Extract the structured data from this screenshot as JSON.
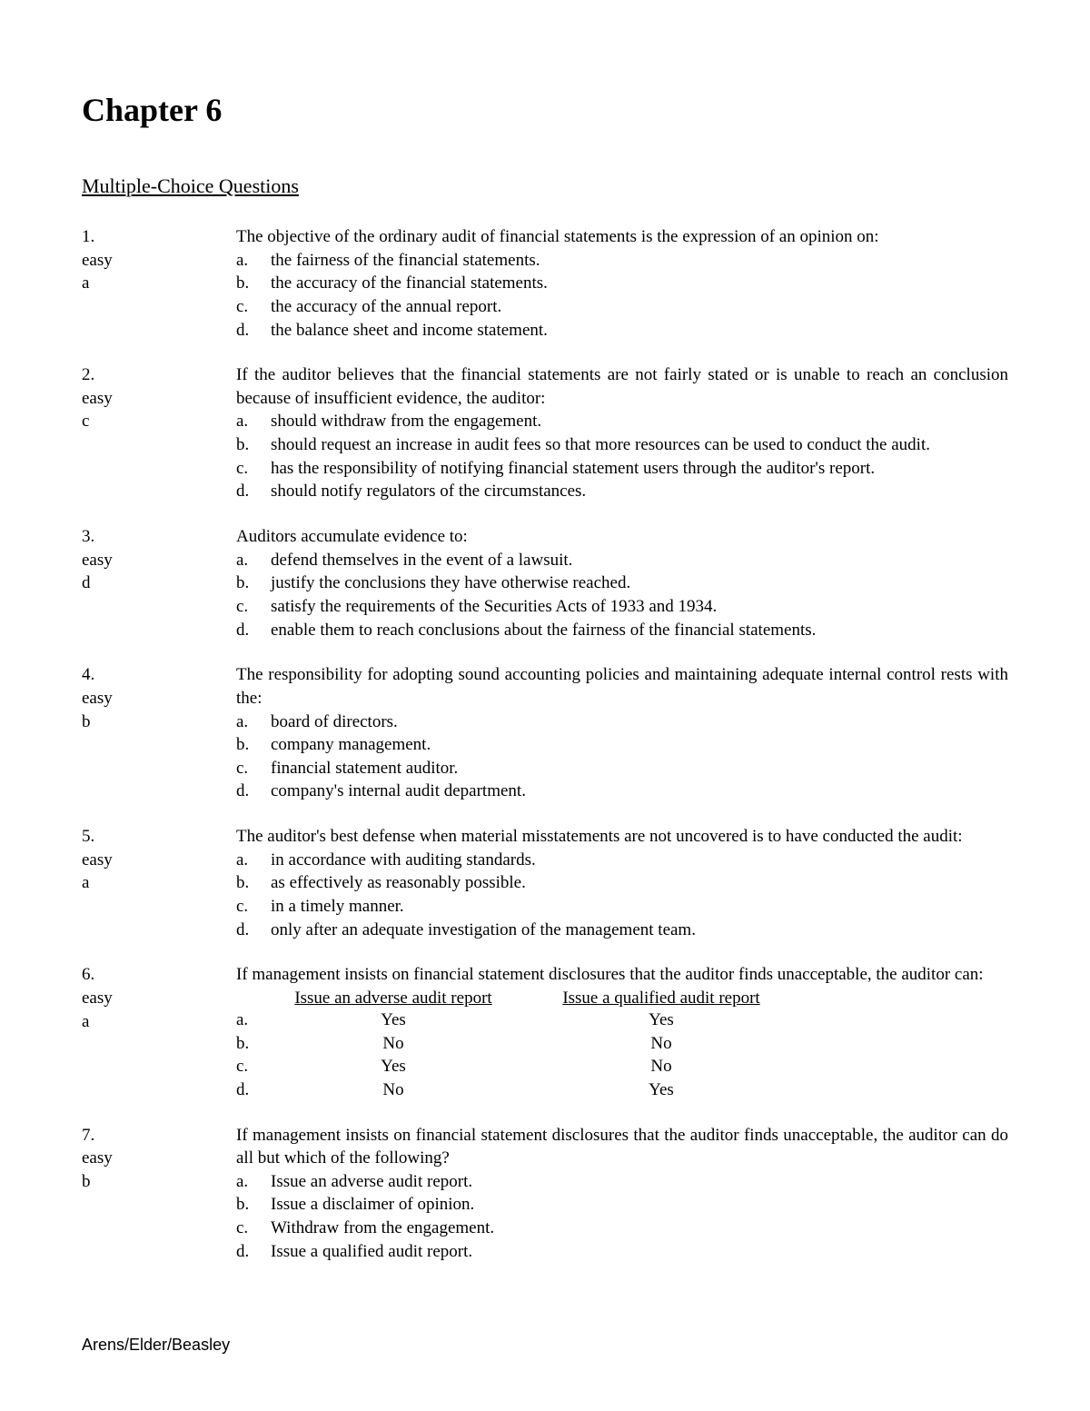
{
  "title": "Chapter 6",
  "section_heading": "Multiple-Choice Questions",
  "footer": "Arens/Elder/Beasley",
  "questions": [
    {
      "number": "1.",
      "difficulty": "easy",
      "answer": "a",
      "stem": "The objective of the ordinary audit of financial statements is the expression of an opinion on:",
      "justify": false,
      "options": [
        {
          "letter": "a.",
          "text": "the fairness of the financial statements."
        },
        {
          "letter": "b.",
          "text": "the accuracy of the financial statements."
        },
        {
          "letter": "c.",
          "text": "the accuracy of the annual report."
        },
        {
          "letter": "d.",
          "text": "the balance sheet and income statement."
        }
      ]
    },
    {
      "number": "2.",
      "difficulty": "easy",
      "answer": "c",
      "stem": "If the auditor believes that the financial statements are not fairly stated or is unable to reach an conclusion because of insufficient evidence, the auditor:",
      "justify": true,
      "options": [
        {
          "letter": "a.",
          "text": "should withdraw from the engagement."
        },
        {
          "letter": "b.",
          "text": "should request an increase in audit fees so that more resources can be used to conduct the audit.",
          "justify": true
        },
        {
          "letter": "c.",
          "text": "has the responsibility of notifying financial statement users through the auditor's report."
        },
        {
          "letter": "d.",
          "text": "should notify regulators of the circumstances."
        }
      ]
    },
    {
      "number": "3.",
      "difficulty": "easy",
      "answer": "d",
      "stem": "Auditors accumulate evidence to:",
      "justify": false,
      "options": [
        {
          "letter": "a.",
          "text": "defend themselves in the event of a lawsuit."
        },
        {
          "letter": "b.",
          "text": "justify the conclusions they have otherwise reached."
        },
        {
          "letter": "c.",
          "text": "satisfy the requirements of the Securities Acts of 1933 and 1934."
        },
        {
          "letter": "d.",
          "text": "enable them to reach conclusions about the fairness of the financial statements."
        }
      ]
    },
    {
      "number": "4.",
      "difficulty": "easy",
      "answer": "b",
      "stem": "The responsibility for adopting sound accounting policies and maintaining adequate internal control rests with the:",
      "justify": true,
      "options": [
        {
          "letter": "a.",
          "text": "board of directors."
        },
        {
          "letter": "b.",
          "text": "company management."
        },
        {
          "letter": "c.",
          "text": "financial statement auditor."
        },
        {
          "letter": "d.",
          "text": "company's internal audit department."
        }
      ]
    },
    {
      "number": "5.",
      "difficulty": "easy",
      "answer": "a",
      "stem": "The auditor's best defense when material misstatements are not uncovered is to have conducted the audit:",
      "justify": false,
      "options": [
        {
          "letter": "a.",
          "text": "in accordance with auditing standards."
        },
        {
          "letter": "b.",
          "text": "as effectively as reasonably possible."
        },
        {
          "letter": "c.",
          "text": "in a timely manner."
        },
        {
          "letter": "d.",
          "text": "only after an adequate investigation of the management team."
        }
      ]
    },
    {
      "number": "6.",
      "difficulty": "easy",
      "answer": "a",
      "stem": "If management insists on financial statement disclosures that the auditor finds unacceptable, the auditor can:",
      "justify": true,
      "matrix": {
        "headers": [
          "Issue an adverse audit report",
          "Issue a qualified audit report"
        ],
        "rows": [
          {
            "letter": "a.",
            "cells": [
              "Yes",
              "Yes"
            ]
          },
          {
            "letter": "b.",
            "cells": [
              "No",
              "No"
            ]
          },
          {
            "letter": "c.",
            "cells": [
              "Yes",
              "No"
            ]
          },
          {
            "letter": "d.",
            "cells": [
              "No",
              "Yes"
            ]
          }
        ]
      }
    },
    {
      "number": "7.",
      "difficulty": "easy",
      "answer": "b",
      "stem": "If management insists on financial statement disclosures that the auditor finds unacceptable, the auditor can do all but which of the following?",
      "justify": true,
      "options": [
        {
          "letter": "a.",
          "text": "Issue an adverse audit report."
        },
        {
          "letter": "b.",
          "text": "Issue a disclaimer of opinion."
        },
        {
          "letter": "c.",
          "text": "Withdraw from the engagement."
        },
        {
          "letter": "d.",
          "text": "Issue a qualified audit report."
        }
      ]
    }
  ]
}
